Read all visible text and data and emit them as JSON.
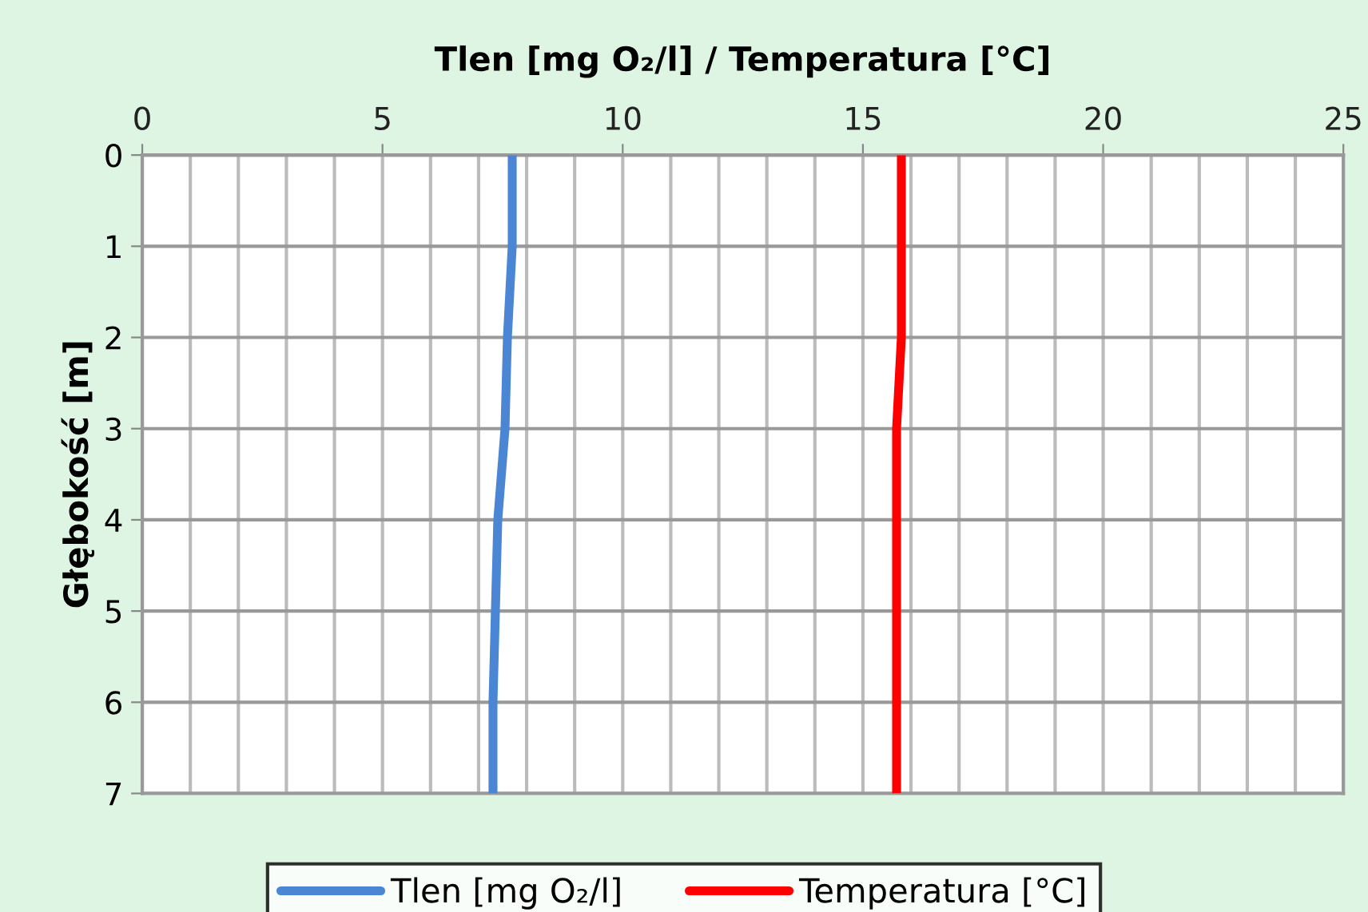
{
  "chart_data": {
    "type": "line",
    "title": "Tlen [mg O₂/l] / Temperatura [°C]",
    "ylabel": "Głębokość [m]",
    "xlim": [
      0,
      25
    ],
    "xticks": [
      0,
      5,
      10,
      15,
      20,
      25
    ],
    "ylim": [
      7,
      0
    ],
    "yticks": [
      0,
      1,
      2,
      3,
      4,
      5,
      6,
      7
    ],
    "grid": true,
    "legend": "bottom",
    "line_style": "solid",
    "marker": "none",
    "series": [
      {
        "name": "Tlen [mg O₂/l]",
        "color": "#4a86d4",
        "x": [
          7.7,
          7.7,
          7.6,
          7.55,
          7.4,
          7.35,
          7.3,
          7.3
        ],
        "values": [
          0,
          1,
          2,
          3,
          4,
          5,
          6,
          7
        ]
      },
      {
        "name": "Temperatura [°C]",
        "color": "#ff0000",
        "x": [
          15.8,
          15.8,
          15.8,
          15.7,
          15.7,
          15.7,
          15.7,
          15.7
        ],
        "values": [
          0,
          1,
          2,
          3,
          4,
          5,
          6,
          7
        ]
      }
    ]
  }
}
